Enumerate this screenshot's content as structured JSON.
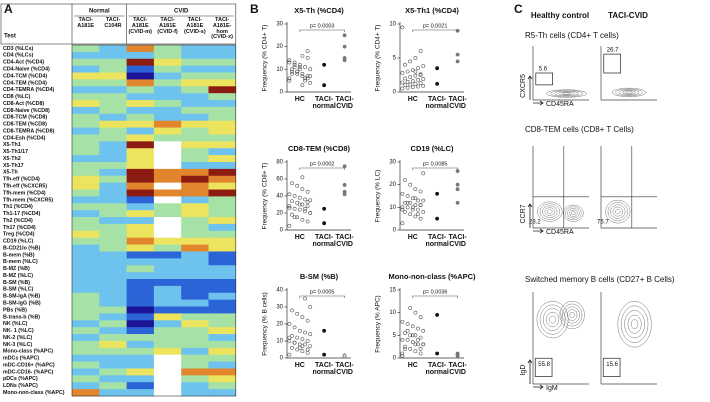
{
  "panel_labels": [
    "A",
    "B",
    "C"
  ],
  "chart_data": [
    {
      "type": "heatmap",
      "row_header": "Test",
      "groups": [
        {
          "name": "Normal",
          "columns": [
            "TACI-A181E",
            "TACI-C104R"
          ]
        },
        {
          "name": "CVID",
          "columns": [
            "TACI-A181E (CVID-m)",
            "TACI-A181E (CVID-f)",
            "TACI-A181E (CVID-s)",
            "TACI-A181E-hom (CVID-x)"
          ]
        }
      ],
      "rows": [
        "CD3 (%LCs)",
        "CD4 (%LCs)",
        "CD4-Act (%CD4)",
        "CD4-Naive (%CD4)",
        "CD4-TCM (%CD4)",
        "CD4-TEM (%CD4)",
        "CD4-TEMRA (%CD4)",
        "CD8 (%LC)",
        "CD8-Act (%CD8)",
        "CD8-Naive (%CD8)",
        "CD8-TCM (%CD8)",
        "CD8-TEM (%CD8)",
        "CD8-TEMRA (%CD8)",
        "CD4-Esh (%CD4)",
        "X5-Th1",
        "X5-Th1/17",
        "X5-Th2",
        "X5-Th17",
        "X5-Th",
        "Tfh-eff (%CD4)",
        "Tfh-eff (%CXCR5)",
        "Tfh-mem (%CD4)",
        "Tfh-mem (%CXCR5)",
        "Th1 (%CD4)",
        "Th1-17 (%CD4)",
        "Th2 (%CD4)",
        "Th17 (%CD4)",
        "Treg (%CD4)",
        "CD19 (%LC)",
        "B-CD21lo (%B)",
        "B-mem (%B)",
        "B-mem (%LC)",
        "B-MZ (%B)",
        "B-MZ (%LC)",
        "B-SM (%B)",
        "B-SM (%LC)",
        "B-SM-IgA (%B)",
        "B-SM-IgG (%B)",
        "PBs (%B)",
        "B-trans-b (%B)",
        "NK (%LC)",
        "NK- 1 (%LC)",
        "NK-2 (%LC)",
        "NK-3 (%LC)",
        "Mono-class (%APC)",
        "mDCs (%APC)",
        "mDC-CD16+ (%APC)",
        "mDC-CD16- (%APC)",
        "pDCs (%APC)",
        "LDNs (%APC)",
        "Mono-non-class (%APC)"
      ],
      "values": [
        [
          0,
          -1,
          2,
          0,
          -1,
          -1
        ],
        [
          -1,
          -1,
          -1,
          0,
          -1,
          -1
        ],
        [
          0,
          0,
          3,
          1,
          0,
          0
        ],
        [
          -1,
          0,
          -2,
          0,
          -1,
          -1
        ],
        [
          1,
          1,
          -3,
          -1,
          0,
          0
        ],
        [
          0,
          0,
          2,
          0,
          1,
          1
        ],
        [
          -1,
          -1,
          0,
          -1,
          0,
          3
        ],
        [
          0,
          0,
          -1,
          -1,
          -1,
          0
        ],
        [
          1,
          0,
          1,
          0,
          -1,
          -1
        ],
        [
          -1,
          0,
          -1,
          -1,
          0,
          0
        ],
        [
          0,
          -1,
          0,
          -1,
          -1,
          0
        ],
        [
          0,
          1,
          1,
          2,
          1,
          1
        ],
        [
          -1,
          0,
          -1,
          1,
          0,
          1
        ],
        [
          0,
          0,
          1,
          0,
          0,
          0
        ],
        [
          0,
          -1,
          3,
          null,
          1,
          1
        ],
        [
          0,
          -1,
          1,
          null,
          0,
          -1
        ],
        [
          -1,
          -1,
          1,
          null,
          0,
          1
        ],
        [
          0,
          0,
          1,
          null,
          -1,
          -1
        ],
        [
          0,
          -1,
          3,
          2,
          2,
          3
        ],
        [
          1,
          0,
          3,
          2,
          3,
          2
        ],
        [
          1,
          -1,
          2,
          null,
          2,
          1
        ],
        [
          0,
          -1,
          3,
          2,
          2,
          3
        ],
        [
          -1,
          -1,
          -2,
          null,
          -1,
          0
        ],
        [
          0,
          0,
          -1,
          0,
          1,
          0
        ],
        [
          -1,
          0,
          1,
          0,
          1,
          0
        ],
        [
          0,
          -1,
          -1,
          null,
          0,
          1
        ],
        [
          0,
          0,
          1,
          null,
          0,
          -1
        ],
        [
          1,
          0,
          1,
          null,
          0,
          0
        ],
        [
          0,
          0,
          2,
          1,
          1,
          1
        ],
        [
          -1,
          0,
          1,
          0,
          2,
          1
        ],
        [
          -1,
          -1,
          -2,
          -2,
          -1,
          -2
        ],
        [
          -1,
          -1,
          -1,
          -1,
          -1,
          -2
        ],
        [
          -1,
          -1,
          0,
          -1,
          -1,
          -1
        ],
        [
          -1,
          -1,
          -1,
          -1,
          -1,
          -1
        ],
        [
          -1,
          -1,
          -2,
          -2,
          -2,
          -2
        ],
        [
          -1,
          -1,
          -2,
          -1,
          -2,
          -2
        ],
        [
          0,
          -1,
          -2,
          -1,
          -2,
          -1
        ],
        [
          0,
          -1,
          -2,
          -1,
          -1,
          -2
        ],
        [
          0,
          0,
          -3,
          -2,
          -2,
          -2
        ],
        [
          0,
          -1,
          -2,
          1,
          0,
          0
        ],
        [
          -1,
          0,
          -3,
          -1,
          1,
          0
        ],
        [
          0,
          -1,
          -2,
          0,
          0,
          1
        ],
        [
          -1,
          0,
          0,
          0,
          0,
          -1
        ],
        [
          0,
          1,
          -1,
          0,
          0,
          0
        ],
        [
          0,
          0,
          0,
          1,
          -1,
          1
        ],
        [
          -1,
          -1,
          -1,
          null,
          0,
          0
        ],
        [
          0,
          -1,
          -1,
          null,
          0,
          -1
        ],
        [
          -1,
          0,
          1,
          null,
          2,
          2
        ],
        [
          0,
          -1,
          -1,
          null,
          0,
          1
        ],
        [
          -1,
          0,
          -2,
          null,
          -1,
          0
        ],
        [
          2,
          -1,
          -1,
          null,
          -1,
          -1
        ]
      ],
      "vmin": -3,
      "vmax": 3,
      "colormap": [
        "#1c1496",
        "#2a64d6",
        "#6ec2ee",
        "#a6e2a6",
        "#ece45e",
        "#e2862e",
        "#8c1c12"
      ],
      "missing_color": "#ffffff"
    },
    {
      "type": "strip",
      "title": "X5-Th (%CD4)",
      "ylabel": "Frequency (% CD4+ T)",
      "ylim": [
        0,
        30
      ],
      "yticks": [
        0,
        10,
        20,
        30
      ],
      "p_value": "p= 0.0003",
      "series": [
        {
          "name": "HC",
          "color": "#555555",
          "filled": false,
          "values": [
            5,
            6,
            7,
            8,
            9,
            10,
            11,
            12,
            13,
            6,
            7,
            8,
            9,
            10,
            4,
            5,
            11,
            12,
            14,
            15,
            16,
            9,
            8,
            7,
            6,
            10,
            11,
            13,
            18,
            3
          ]
        },
        {
          "name": "TACI-normal",
          "color": "#111111",
          "filled": true,
          "values": [
            12,
            3
          ]
        },
        {
          "name": "TACI-CVID",
          "color": "#777777",
          "filled": true,
          "values": [
            25,
            20,
            15,
            14
          ]
        }
      ]
    },
    {
      "type": "strip",
      "title": "X5-Th1 (%CD4)",
      "ylabel": "Frequency (% CD4+ T)",
      "ylim": [
        0,
        10
      ],
      "yticks": [
        0,
        5,
        10
      ],
      "p_value": "p= 0.0021",
      "series": [
        {
          "name": "HC",
          "color": "#555555",
          "filled": false,
          "values": [
            9.5,
            6,
            5,
            4.5,
            4,
            3.8,
            3.5,
            3.2,
            3,
            2.8,
            2.6,
            2.4,
            2.2,
            2,
            1.9,
            1.8,
            1.6,
            1.5,
            1.4,
            1.3,
            1.2,
            1.1,
            1,
            0.9,
            0.8,
            0.7,
            0.6,
            0.5,
            2.5,
            3
          ]
        },
        {
          "name": "TACI-normal",
          "color": "#111111",
          "filled": true,
          "values": [
            3.5,
            1.2
          ]
        },
        {
          "name": "TACI-CVID",
          "color": "#777777",
          "filled": true,
          "values": [
            9,
            5.5,
            4.5
          ]
        }
      ]
    },
    {
      "type": "strip",
      "title": "CD8-TEM (%CD8)",
      "ylabel": "Frequency (% CD8+ T)",
      "ylim": [
        0,
        80
      ],
      "yticks": [
        0,
        20,
        40,
        60,
        80
      ],
      "p_value": "p= 0.0002",
      "series": [
        {
          "name": "HC",
          "color": "#555555",
          "filled": false,
          "values": [
            5,
            10,
            12,
            15,
            18,
            20,
            22,
            24,
            25,
            26,
            28,
            30,
            32,
            34,
            35,
            36,
            38,
            40,
            42,
            45,
            48,
            52,
            55,
            20,
            25,
            30,
            15,
            28,
            33,
            62
          ]
        },
        {
          "name": "TACI-normal",
          "color": "#111111",
          "filled": true,
          "values": [
            25,
            8
          ]
        },
        {
          "name": "TACI-CVID",
          "color": "#777777",
          "filled": true,
          "values": [
            75,
            53,
            45,
            42
          ]
        }
      ]
    },
    {
      "type": "strip",
      "title": "CD19 (%LC)",
      "ylabel": "Frequency (% LC)",
      "ylim": [
        0,
        30
      ],
      "yticks": [
        0,
        10,
        20,
        30
      ],
      "p_value": "p= 0.0085",
      "series": [
        {
          "name": "HC",
          "color": "#555555",
          "filled": false,
          "values": [
            3,
            5,
            6,
            7,
            8,
            8,
            9,
            9,
            10,
            10,
            11,
            11,
            12,
            12,
            13,
            13,
            14,
            15,
            16,
            17,
            18,
            20,
            22,
            25,
            7,
            10,
            12,
            9,
            11,
            14
          ]
        },
        {
          "name": "TACI-normal",
          "color": "#111111",
          "filled": true,
          "values": [
            16,
            5
          ]
        },
        {
          "name": "TACI-CVID",
          "color": "#777777",
          "filled": true,
          "values": [
            26,
            20,
            18,
            12
          ]
        }
      ]
    },
    {
      "type": "strip",
      "title": "B-SM (%B)",
      "ylabel": "Frequency (% B cells)",
      "ylim": [
        0,
        40
      ],
      "yticks": [
        0,
        10,
        20,
        30,
        40
      ],
      "p_value": "p= 0.0005",
      "series": [
        {
          "name": "HC",
          "color": "#555555",
          "filled": false,
          "values": [
            2,
            3,
            4,
            5,
            6,
            7,
            8,
            8,
            9,
            10,
            10,
            11,
            12,
            13,
            14,
            15,
            16,
            18,
            20,
            22,
            24,
            26,
            28,
            30,
            35,
            6,
            9,
            12,
            5,
            7
          ]
        },
        {
          "name": "TACI-normal",
          "color": "#111111",
          "filled": true,
          "values": [
            16,
            2
          ]
        },
        {
          "name": "TACI-CVID",
          "color": "#777777",
          "filled": false,
          "values": [
            1,
            1,
            1.5
          ]
        }
      ]
    },
    {
      "type": "strip",
      "title": "Mono-non-class (%APC)",
      "ylabel": "Frequency (% APC)",
      "ylim": [
        0,
        15
      ],
      "yticks": [
        0,
        5,
        10,
        15
      ],
      "p_value": "p= 0.0036",
      "series": [
        {
          "name": "HC",
          "color": "#555555",
          "filled": false,
          "values": [
            0.5,
            1,
            1.5,
            2,
            2.5,
            3,
            3,
            3.5,
            4,
            4,
            4.5,
            5,
            5,
            5.5,
            6,
            6.5,
            7,
            7.5,
            8,
            9,
            10,
            11,
            2,
            3,
            4,
            5,
            6,
            1,
            2,
            3
          ]
        },
        {
          "name": "TACI-normal",
          "color": "#111111",
          "filled": true,
          "values": [
            9.5,
            1
          ]
        },
        {
          "name": "TACI-CVID",
          "color": "#777777",
          "filled": true,
          "values": [
            1,
            0.5,
            0.8
          ]
        }
      ]
    }
  ],
  "flow_panel": {
    "columns": [
      "Healthy control",
      "TACI-CVID"
    ],
    "sections": [
      {
        "title": "R5-Th cells (CD4+ T cells)",
        "gates": [
          "5.6",
          "26.7"
        ],
        "x_label": "CD45RA",
        "y_label": "CXCR5"
      },
      {
        "title": "CD8-TEM cells (CD8+ T Cells)",
        "gates": [
          "23.2",
          "75.7"
        ],
        "x_label": "CD45RA",
        "y_label": "CCR7"
      },
      {
        "title": "Switched memory B cells (CD27+ B Cells)",
        "gates": [
          "55.8",
          "15.6"
        ],
        "x_label": "IgM",
        "y_label": "IgD"
      }
    ]
  }
}
